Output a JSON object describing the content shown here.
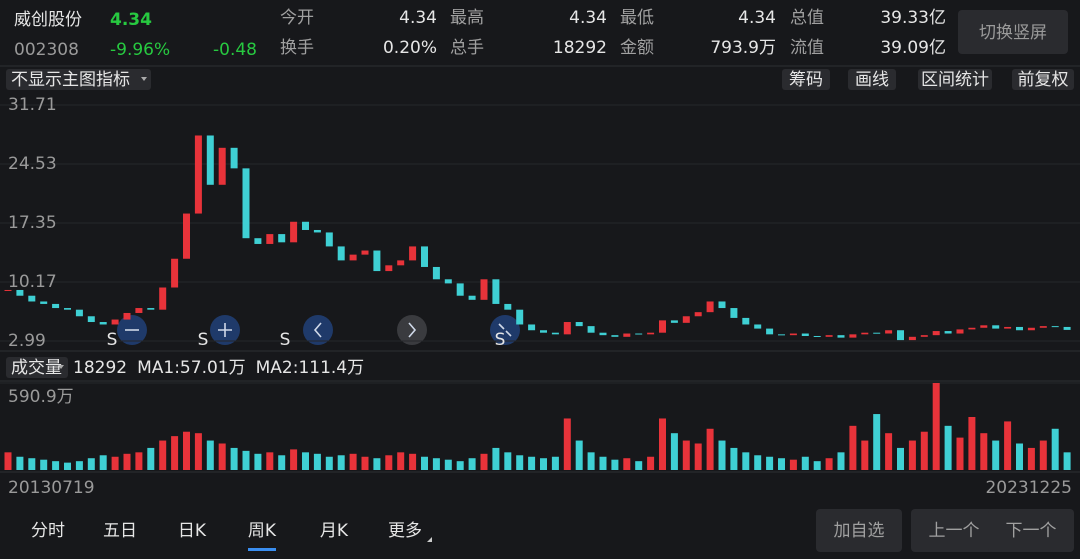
{
  "header": {
    "name": "威创股份",
    "price": "4.34",
    "code": "002308",
    "change_pct": "-9.96%",
    "change": "-0.48",
    "stats": [
      {
        "label": "今开",
        "value": "4.34"
      },
      {
        "label": "最高",
        "value": "4.34"
      },
      {
        "label": "最低",
        "value": "4.34"
      },
      {
        "label": "总值",
        "value": "39.33亿"
      },
      {
        "label": "换手",
        "value": "0.20%"
      },
      {
        "label": "总手",
        "value": "18292"
      },
      {
        "label": "金额",
        "value": "793.9万"
      },
      {
        "label": "流值",
        "value": "39.09亿"
      }
    ],
    "orientation_button": "切换竖屏"
  },
  "toolbar": {
    "indicator_menu": "不显示主图指标",
    "buttons": [
      "筹码",
      "画线",
      "区间统计",
      "前复权"
    ]
  },
  "chart_data": [
    {
      "type": "candlestick",
      "up_color": "#e8333a",
      "down_color": "#3fd0d4",
      "categories": [
        "20130719",
        null,
        null,
        null,
        null,
        null,
        null,
        null,
        null,
        null,
        null,
        null,
        null,
        null,
        null,
        null,
        null,
        null,
        null,
        null,
        null,
        null,
        null,
        null,
        null,
        null,
        null,
        null,
        null,
        null,
        null,
        null,
        null,
        null,
        null,
        null,
        null,
        null,
        null,
        null,
        null,
        null,
        null,
        null,
        null,
        null,
        null,
        null,
        null,
        null,
        null,
        null,
        null,
        null,
        null,
        null,
        null,
        null,
        null,
        null,
        null,
        null,
        null,
        null,
        null,
        null,
        null,
        null,
        null,
        null,
        null,
        null,
        null,
        null,
        null,
        null,
        null,
        null,
        null,
        null,
        null,
        null,
        null,
        null,
        null,
        null,
        null,
        null,
        null,
        "20231225"
      ],
      "values": [
        9.2,
        8.5,
        7.8,
        7.5,
        7.0,
        6.8,
        6.0,
        5.3,
        5.0,
        5.6,
        6.4,
        7.0,
        6.8,
        9.5,
        13.0,
        18.5,
        28.0,
        22.0,
        26.5,
        24.0,
        15.5,
        14.8,
        16.0,
        15.0,
        17.5,
        16.5,
        16.2,
        14.5,
        12.8,
        13.5,
        14.0,
        11.5,
        12.2,
        12.8,
        14.5,
        12.0,
        10.5,
        10.0,
        8.5,
        8.0,
        10.5,
        7.5,
        6.8,
        5.0,
        4.3,
        4.0,
        3.8,
        5.3,
        4.8,
        4.0,
        3.7,
        3.5,
        3.9,
        3.8,
        4.0,
        5.5,
        5.2,
        6.0,
        6.5,
        7.8,
        7.0,
        5.8,
        5.0,
        4.5,
        3.8,
        3.7,
        3.9,
        3.6,
        3.5,
        3.7,
        3.4,
        3.8,
        4.0,
        3.9,
        4.3,
        3.1,
        3.5,
        3.7,
        4.2,
        3.9,
        4.4,
        4.6,
        4.9,
        4.5,
        4.7,
        4.3,
        4.6,
        4.8,
        4.7,
        4.34
      ],
      "ylim": [
        2.99,
        31.71
      ],
      "yticks": [
        2.99,
        10.17,
        17.35,
        24.53,
        31.71
      ],
      "signals": [
        "S",
        "S",
        "S",
        "S"
      ]
    },
    {
      "type": "bar",
      "title": "成交量",
      "color_source": "candlestick",
      "legend": [
        {
          "text": "18292",
          "color": "#ffffff"
        },
        {
          "text": "MA1:57.01万",
          "color": "#f5d90a"
        },
        {
          "text": "MA2:111.4万",
          "color": "#e040e0"
        }
      ],
      "values": [
        120,
        90,
        80,
        70,
        60,
        50,
        60,
        80,
        100,
        90,
        110,
        120,
        150,
        200,
        230,
        260,
        250,
        200,
        180,
        150,
        130,
        110,
        120,
        100,
        140,
        120,
        110,
        90,
        100,
        110,
        90,
        80,
        100,
        120,
        110,
        90,
        80,
        70,
        60,
        80,
        110,
        150,
        120,
        100,
        90,
        80,
        90,
        350,
        200,
        120,
        90,
        70,
        80,
        60,
        90,
        350,
        250,
        200,
        180,
        280,
        200,
        150,
        120,
        100,
        90,
        80,
        70,
        90,
        60,
        80,
        120,
        300,
        200,
        380,
        250,
        150,
        200,
        260,
        590.9,
        300,
        220,
        360,
        250,
        200,
        330,
        180,
        150,
        200,
        280,
        120
      ],
      "ylim": [
        0,
        590.9
      ],
      "yticks": [
        {
          "value": 590.9,
          "label": "590.9万"
        }
      ]
    }
  ],
  "tabs": {
    "items": [
      "分时",
      "五日",
      "日K",
      "周K",
      "月K",
      "更多"
    ],
    "selected": 3
  },
  "actions": [
    "加自选",
    "上一个",
    "下一个"
  ]
}
